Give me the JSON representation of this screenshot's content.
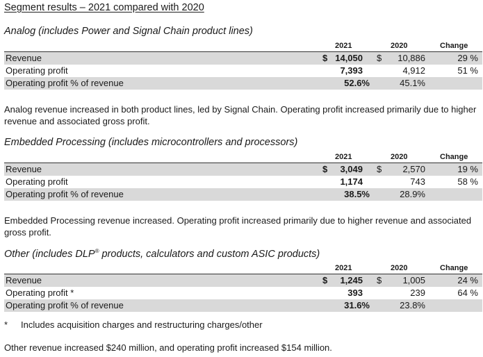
{
  "title": "Segment results – 2021 compared with 2020",
  "headers": {
    "y2021": "2021",
    "y2020": "2020",
    "change": "Change"
  },
  "segments": [
    {
      "heading": "Analog (includes Power and Signal Chain product lines)",
      "rows": [
        {
          "label": "Revenue",
          "dollar2021": "$",
          "v2021": "14,050",
          "dollar2020": "$",
          "v2020": "10,886",
          "change": "29 %"
        },
        {
          "label": "Operating profit",
          "v2021": "7,393",
          "v2020": "4,912",
          "change": "51 %"
        },
        {
          "label": "Operating profit % of revenue",
          "v2021": "52.6%",
          "v2020": "45.1%"
        }
      ],
      "narrative": "Analog revenue increased in both product lines, led by Signal Chain. Operating profit increased primarily due to higher revenue and associated gross profit."
    },
    {
      "heading": "Embedded Processing (includes microcontrollers and processors)",
      "rows": [
        {
          "label": "Revenue",
          "dollar2021": "$",
          "v2021": "3,049",
          "dollar2020": "$",
          "v2020": "2,570",
          "change": "19 %"
        },
        {
          "label": "Operating profit",
          "v2021": "1,174",
          "v2020": "743",
          "change": "58 %"
        },
        {
          "label": "Operating profit % of revenue",
          "v2021": "38.5%",
          "v2020": "28.9%"
        }
      ],
      "narrative": "Embedded Processing revenue increased. Operating profit increased primarily due to higher revenue and associated gross profit."
    },
    {
      "heading_pre": "Other (includes DLP",
      "heading_sup": "®",
      "heading_post": " products, calculators and custom ASIC products)",
      "rows": [
        {
          "label": "Revenue",
          "dollar2021": "$",
          "v2021": "1,245",
          "dollar2020": "$",
          "v2020": "1,005",
          "change": "24 %"
        },
        {
          "label": "Operating profit *",
          "v2021": "393",
          "v2020": "239",
          "change": "64 %"
        },
        {
          "label": "Operating profit % of revenue",
          "v2021": "31.6%",
          "v2020": "23.8%"
        }
      ]
    }
  ],
  "footnote": {
    "marker": "*",
    "text": "Includes acquisition charges and restructuring charges/other"
  },
  "closing": "Other revenue increased $240 million, and operating profit increased $154 million."
}
